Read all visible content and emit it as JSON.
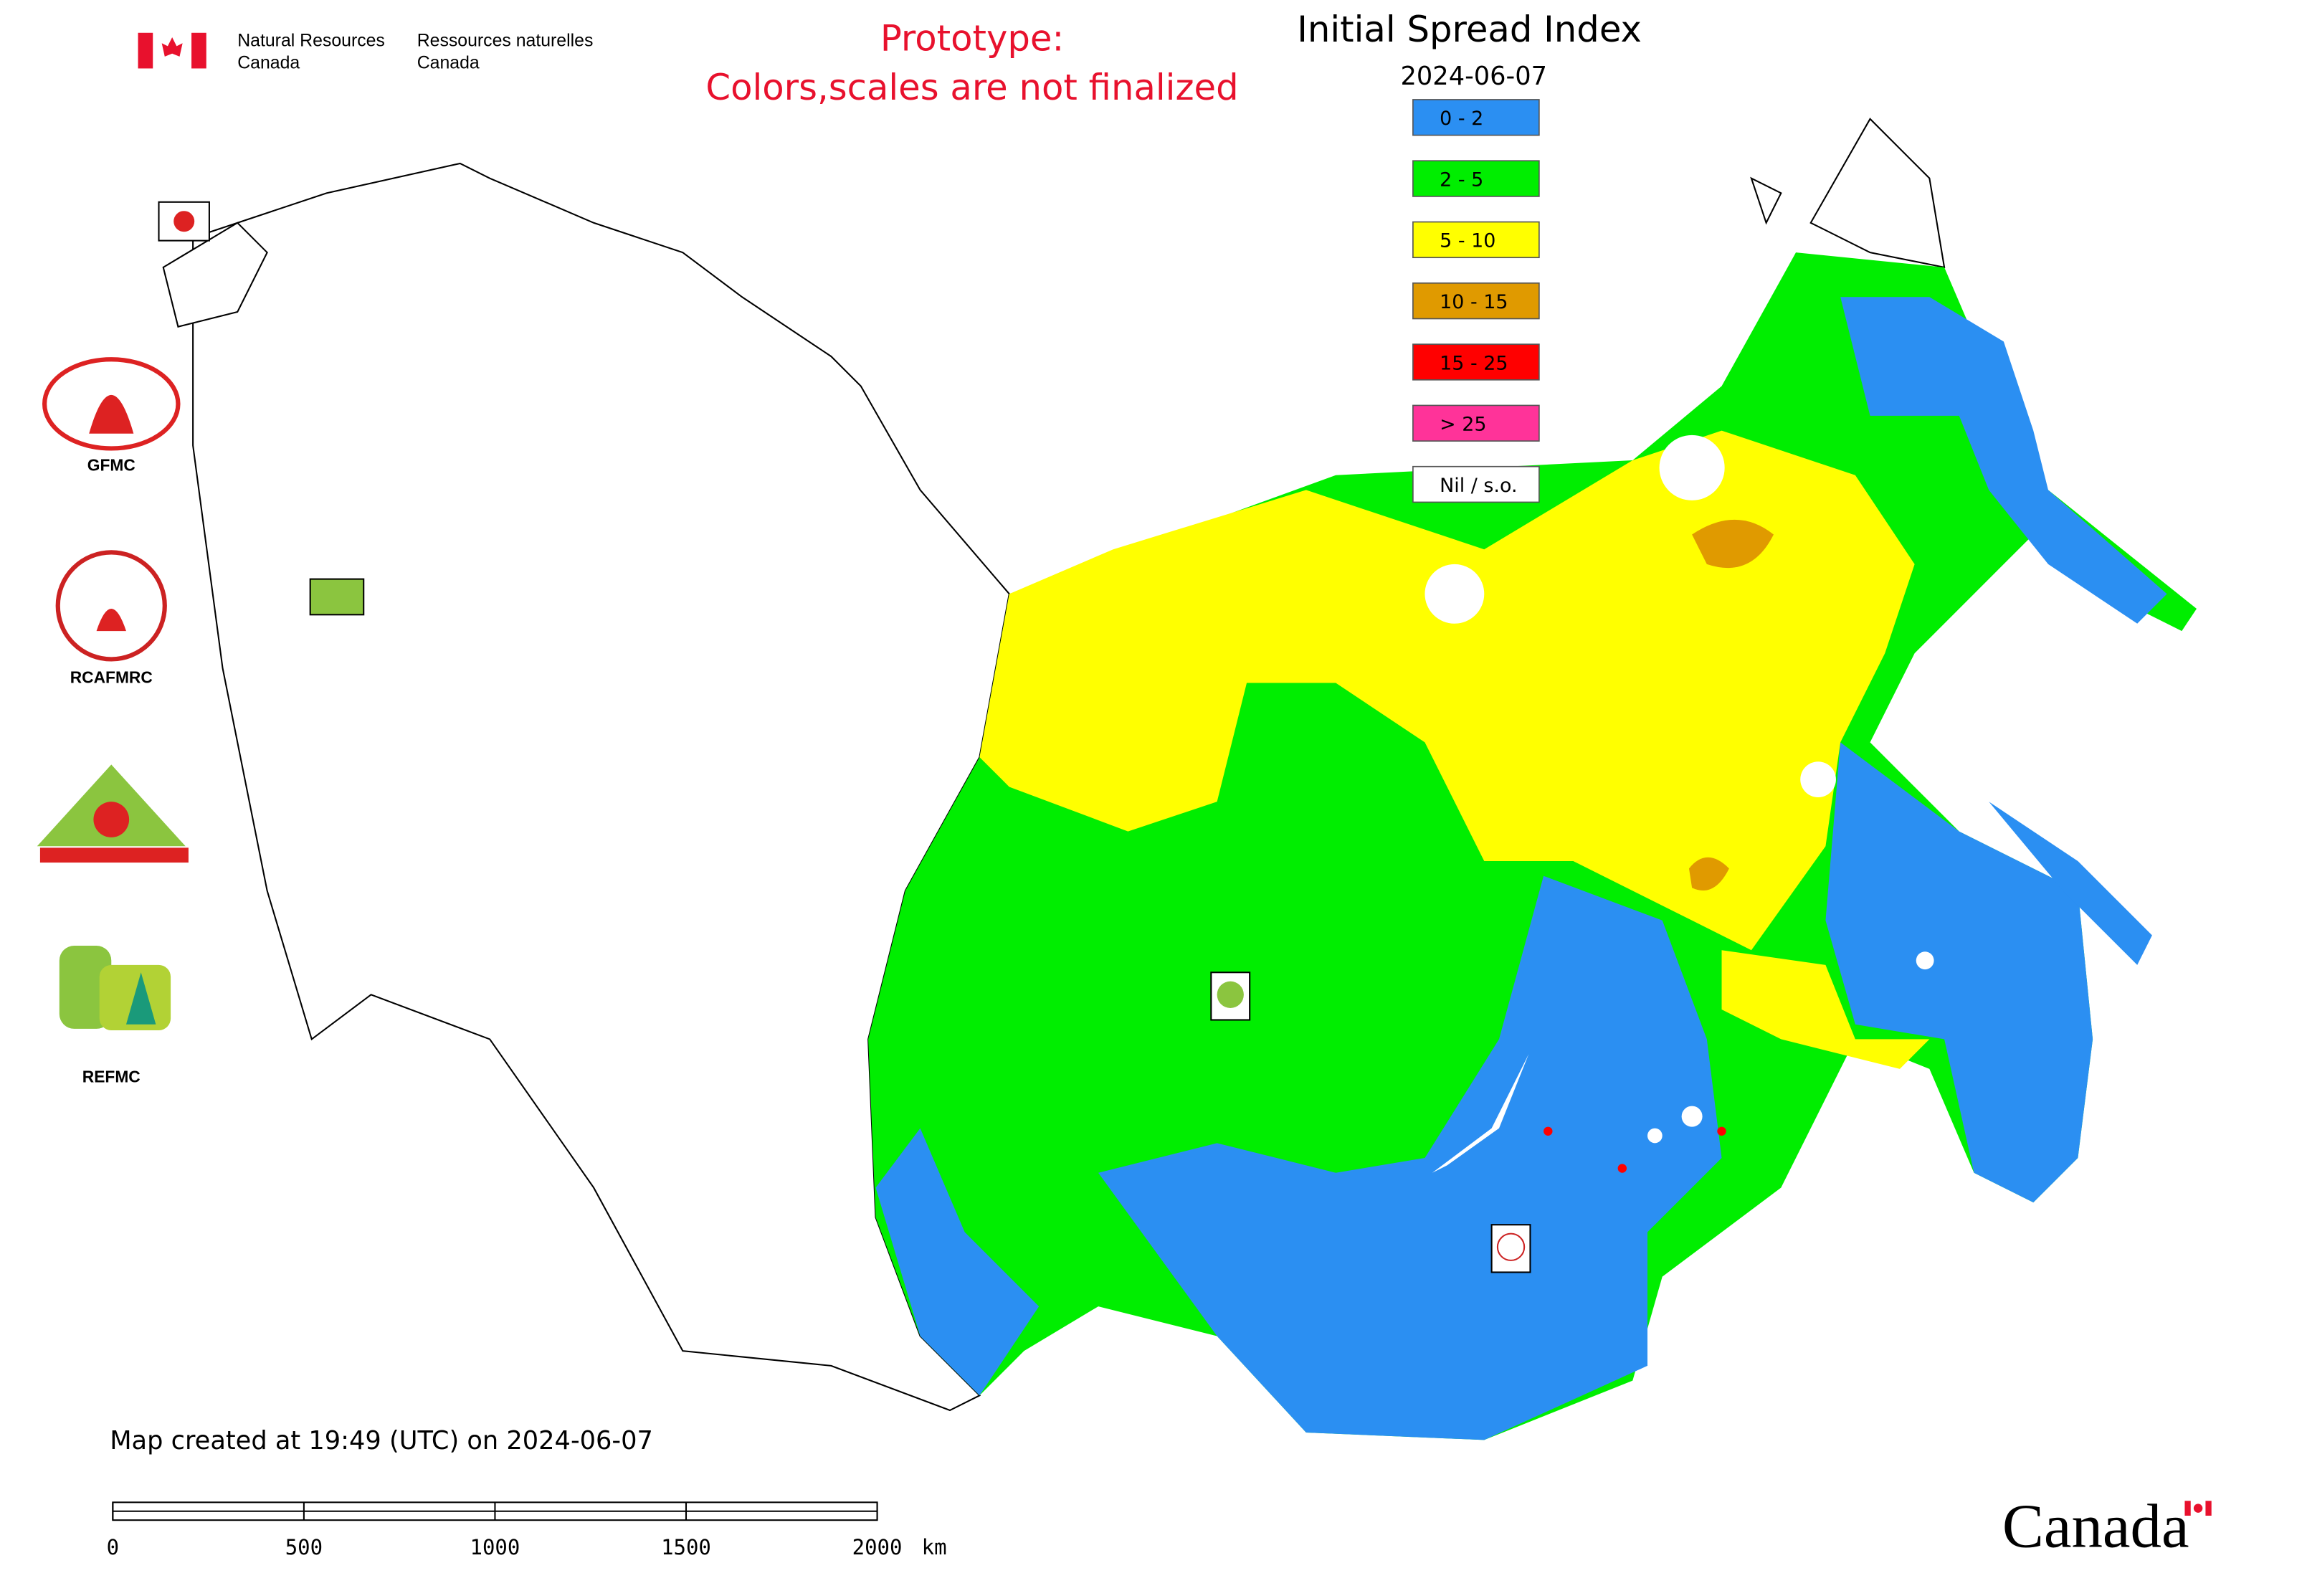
{
  "header": {
    "department_en": [
      "Natural Resources",
      "Canada"
    ],
    "department_fr": [
      "Ressources naturelles",
      "Canada"
    ]
  },
  "notice": [
    "Prototype:",
    "Colors,scales are not finalized"
  ],
  "map": {
    "title": "Initial Spread Index",
    "date": "2024-06-07",
    "legend": [
      {
        "label": "0 - 2",
        "color": "#2b8ff2"
      },
      {
        "label": "2 - 5",
        "color": "#00ee00"
      },
      {
        "label": "5 - 10",
        "color": "#ffff00"
      },
      {
        "label": "10 - 15",
        "color": "#e09a00"
      },
      {
        "label": "15 - 25",
        "color": "#ff0000"
      },
      {
        "label": "> 25",
        "color": "#ff3399"
      },
      {
        "label": "Nil / s.o.",
        "color": "#ffffff"
      }
    ],
    "created": "Map created at 19:49 (UTC) on 2024-06-07",
    "scale_bar": {
      "ticks": [
        0,
        500,
        1000,
        1500,
        2000
      ],
      "unit": "km"
    }
  },
  "logos": [
    "GFMC",
    "RCAFMRC",
    "REFMC"
  ],
  "wordmark": "Canada"
}
